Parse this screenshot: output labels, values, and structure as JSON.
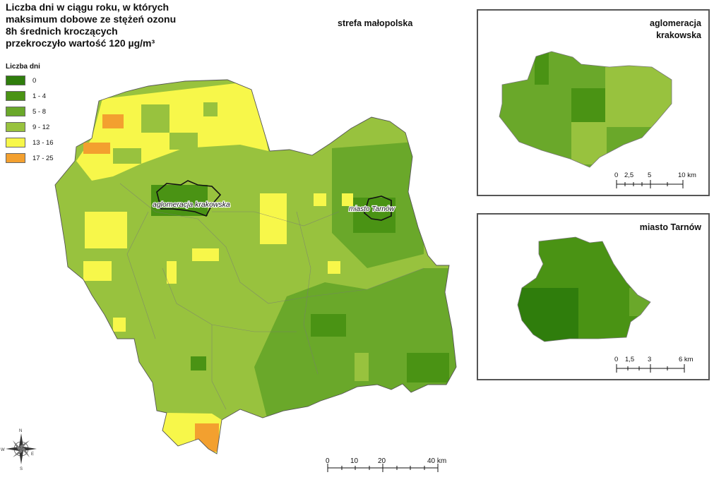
{
  "title": "Liczba dni w ciągu roku, w których\nmaksimum dobowe ze stężeń ozonu\n8h średnich kroczących\nprzekroczyło wartość 120 µg/m³",
  "zone_label": "strefa małopolska",
  "legend": {
    "title": "Liczba dni",
    "items": [
      {
        "label": "0",
        "color": "#2f7d0c"
      },
      {
        "label": "1 - 4",
        "color": "#4a9314"
      },
      {
        "label": "5 - 8",
        "color": "#6aa82a"
      },
      {
        "label": "9 - 12",
        "color": "#98c23e"
      },
      {
        "label": "13 - 16",
        "color": "#f7f74a"
      },
      {
        "label": "17 - 25",
        "color": "#f3a02f"
      }
    ]
  },
  "map_labels": {
    "aglomeracja": "aglomeracja krakowska",
    "tarnow": "miasto Tarnów"
  },
  "main_scale": {
    "ticks": [
      "0",
      "10",
      "20",
      "40 km"
    ]
  },
  "insets": {
    "krakow": {
      "title": "aglomeracja\nkrakowska",
      "scale_ticks": [
        "0",
        "2,5",
        "5",
        "10 km"
      ]
    },
    "tarnow": {
      "title": "miasto Tarnów",
      "scale_ticks": [
        "0",
        "1,5",
        "3",
        "6 km"
      ]
    }
  },
  "compass": {
    "n": "N",
    "e": "E",
    "s": "S",
    "w": "W"
  }
}
